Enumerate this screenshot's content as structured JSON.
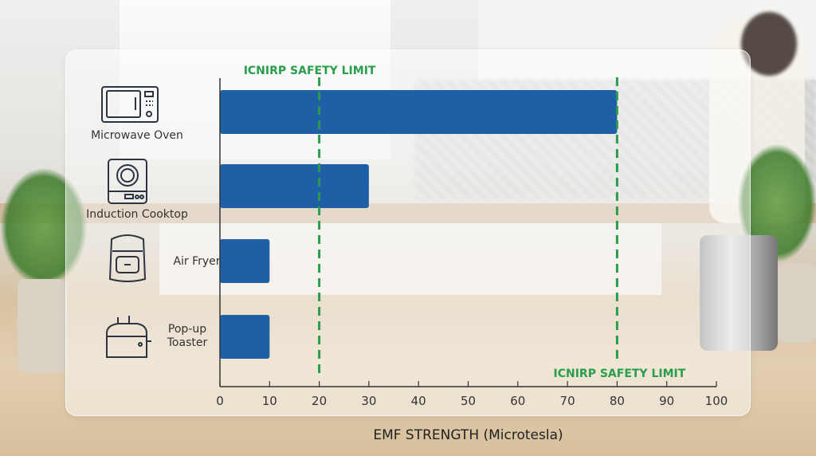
{
  "chart_data": {
    "type": "bar",
    "orientation": "horizontal",
    "categories": [
      "Microwave Oven",
      "Induction Cooktop",
      "Air Fryer",
      "Pop-up Toaster"
    ],
    "category_lines": [
      [
        "Microwave Oven"
      ],
      [
        "Induction Cooktop"
      ],
      [
        "Air Fryer"
      ],
      [
        "Pop-up",
        "Toaster"
      ]
    ],
    "category_icons": [
      "microwave-icon",
      "induction-cooktop-icon",
      "air-fryer-icon",
      "toaster-icon"
    ],
    "values": [
      80,
      30,
      10,
      10
    ],
    "xlabel": "EMF STRENGTH (Microtesla)",
    "ylabel": "",
    "xlim": [
      0,
      100
    ],
    "xticks": [
      0,
      10,
      20,
      30,
      40,
      50,
      60,
      70,
      80,
      90,
      100
    ],
    "grid": false,
    "bar_color": "#1f5fa6",
    "reference_lines": [
      {
        "x": 20,
        "label": "ICNIRP SAFETY LIMIT",
        "label_position": "top"
      },
      {
        "x": 80,
        "label": "ICNIRP SAFETY LIMIT",
        "label_position": "bottom"
      }
    ],
    "reference_color": "#2a9d4c"
  }
}
